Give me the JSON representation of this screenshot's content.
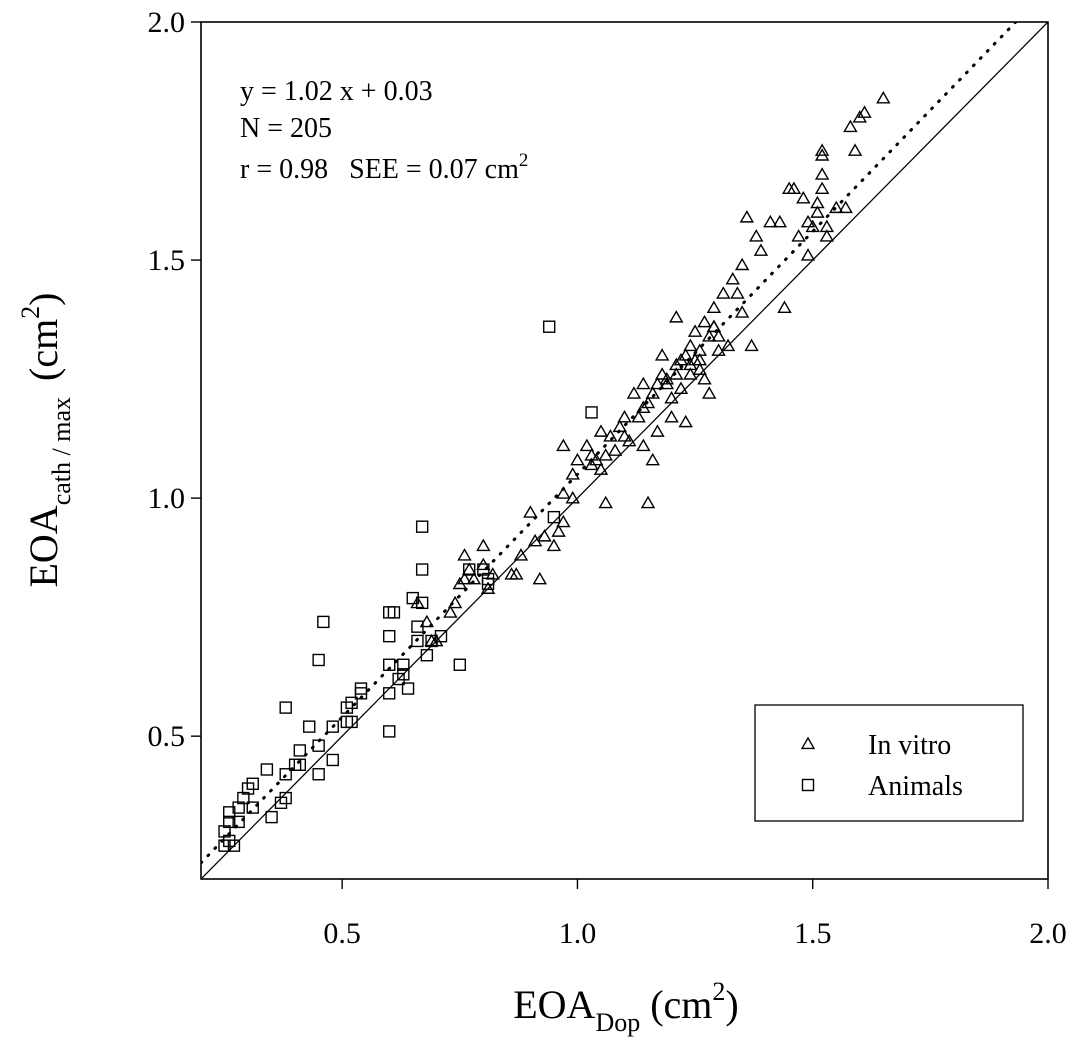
{
  "chart_data": {
    "type": "scatter",
    "xlabel": {
      "main": "EOA",
      "sub": "Dop",
      "unit_pre": "(cm",
      "unit_sup": "2",
      "unit_post": ")"
    },
    "ylabel": {
      "main": "EOA",
      "sub": "cath / max",
      "unit_pre": "(cm",
      "unit_sup": "2",
      "unit_post": ")"
    },
    "xlim": [
      0.2,
      2.0
    ],
    "ylim": [
      0.2,
      2.0
    ],
    "x_ticks": [
      "0.5",
      "1.0",
      "1.5",
      "2.0"
    ],
    "y_ticks": [
      "0.5",
      "1.0",
      "1.5",
      "2.0"
    ],
    "annotation": {
      "equation": "y = 1.02 x + 0.03",
      "n": "N = 205",
      "r_see": "r = 0.98   SEE = 0.07 cm",
      "r_see_sup": "2"
    },
    "regression": {
      "slope": 1.02,
      "intercept": 0.03,
      "style": "dotted"
    },
    "identity_line": {
      "slope": 1,
      "intercept": 0,
      "style": "solid"
    },
    "legend": {
      "position": "bottom-right"
    },
    "series": [
      {
        "name": "In vitro",
        "marker": "triangle",
        "points": [
          [
            0.69,
            0.7
          ],
          [
            0.7,
            0.7
          ],
          [
            0.68,
            0.74
          ],
          [
            0.66,
            0.78
          ],
          [
            0.73,
            0.76
          ],
          [
            0.74,
            0.78
          ],
          [
            0.75,
            0.82
          ],
          [
            0.76,
            0.83
          ],
          [
            0.77,
            0.85
          ],
          [
            0.76,
            0.88
          ],
          [
            0.78,
            0.83
          ],
          [
            0.8,
            0.86
          ],
          [
            0.8,
            0.9
          ],
          [
            0.81,
            0.81
          ],
          [
            0.82,
            0.84
          ],
          [
            0.86,
            0.84
          ],
          [
            0.87,
            0.84
          ],
          [
            0.88,
            0.88
          ],
          [
            0.91,
            0.91
          ],
          [
            0.92,
            0.83
          ],
          [
            0.9,
            0.97
          ],
          [
            0.93,
            0.92
          ],
          [
            0.95,
            0.9
          ],
          [
            0.96,
            0.93
          ],
          [
            0.97,
            0.95
          ],
          [
            0.97,
            1.01
          ],
          [
            0.97,
            1.11
          ],
          [
            0.99,
            1.0
          ],
          [
            0.99,
            1.05
          ],
          [
            1.0,
            1.08
          ],
          [
            1.02,
            1.11
          ],
          [
            1.03,
            1.07
          ],
          [
            1.03,
            1.09
          ],
          [
            1.04,
            1.08
          ],
          [
            1.05,
            1.06
          ],
          [
            1.06,
            0.99
          ],
          [
            1.06,
            1.09
          ],
          [
            1.07,
            1.13
          ],
          [
            1.08,
            1.1
          ],
          [
            1.09,
            1.15
          ],
          [
            1.1,
            1.17
          ],
          [
            1.11,
            1.12
          ],
          [
            1.12,
            1.22
          ],
          [
            1.13,
            1.17
          ],
          [
            1.14,
            1.19
          ],
          [
            1.14,
            1.11
          ],
          [
            1.15,
            1.2
          ],
          [
            1.15,
            0.99
          ],
          [
            1.16,
            1.08
          ],
          [
            1.16,
            1.22
          ],
          [
            1.17,
            1.24
          ],
          [
            1.17,
            1.14
          ],
          [
            1.18,
            1.26
          ],
          [
            1.18,
            1.3
          ],
          [
            1.19,
            1.24
          ],
          [
            1.19,
            1.25
          ],
          [
            1.2,
            1.21
          ],
          [
            1.2,
            1.17
          ],
          [
            1.21,
            1.28
          ],
          [
            1.21,
            1.38
          ],
          [
            1.22,
            1.29
          ],
          [
            1.22,
            1.23
          ],
          [
            1.23,
            1.3
          ],
          [
            1.24,
            1.26
          ],
          [
            1.24,
            1.32
          ],
          [
            1.25,
            1.29
          ],
          [
            1.25,
            1.35
          ],
          [
            1.26,
            1.31
          ],
          [
            1.26,
            1.29
          ],
          [
            1.27,
            1.37
          ],
          [
            1.27,
            1.25
          ],
          [
            1.28,
            1.34
          ],
          [
            1.28,
            1.22
          ],
          [
            1.29,
            1.36
          ],
          [
            1.29,
            1.4
          ],
          [
            1.3,
            1.34
          ],
          [
            1.31,
            1.43
          ],
          [
            1.32,
            1.32
          ],
          [
            1.33,
            1.46
          ],
          [
            1.34,
            1.43
          ],
          [
            1.35,
            1.39
          ],
          [
            1.35,
            1.49
          ],
          [
            1.36,
            1.59
          ],
          [
            1.37,
            1.32
          ],
          [
            1.38,
            1.55
          ],
          [
            1.39,
            1.52
          ],
          [
            1.41,
            1.58
          ],
          [
            1.43,
            1.58
          ],
          [
            1.44,
            1.4
          ],
          [
            1.45,
            1.65
          ],
          [
            1.46,
            1.65
          ],
          [
            1.47,
            1.55
          ],
          [
            1.48,
            1.63
          ],
          [
            1.49,
            1.51
          ],
          [
            1.49,
            1.58
          ],
          [
            1.5,
            1.57
          ],
          [
            1.51,
            1.6
          ],
          [
            1.51,
            1.62
          ],
          [
            1.52,
            1.65
          ],
          [
            1.52,
            1.72
          ],
          [
            1.53,
            1.55
          ],
          [
            1.53,
            1.57
          ],
          [
            1.52,
            1.73
          ],
          [
            1.52,
            1.68
          ],
          [
            1.55,
            1.61
          ],
          [
            1.57,
            1.61
          ],
          [
            1.58,
            1.78
          ],
          [
            1.59,
            1.73
          ],
          [
            1.6,
            1.8
          ],
          [
            1.61,
            1.81
          ],
          [
            1.65,
            1.84
          ],
          [
            1.23,
            1.16
          ],
          [
            1.24,
            1.28
          ],
          [
            1.1,
            1.13
          ],
          [
            1.05,
            1.14
          ],
          [
            1.14,
            1.24
          ],
          [
            1.21,
            1.26
          ],
          [
            1.29,
            1.36
          ],
          [
            1.3,
            1.31
          ],
          [
            1.26,
            1.27
          ]
        ]
      },
      {
        "name": "Animals",
        "marker": "square",
        "points": [
          [
            0.25,
            0.27
          ],
          [
            0.26,
            0.28
          ],
          [
            0.27,
            0.27
          ],
          [
            0.25,
            0.3
          ],
          [
            0.26,
            0.32
          ],
          [
            0.26,
            0.34
          ],
          [
            0.28,
            0.32
          ],
          [
            0.28,
            0.35
          ],
          [
            0.29,
            0.37
          ],
          [
            0.3,
            0.39
          ],
          [
            0.31,
            0.4
          ],
          [
            0.31,
            0.35
          ],
          [
            0.34,
            0.43
          ],
          [
            0.35,
            0.33
          ],
          [
            0.37,
            0.36
          ],
          [
            0.38,
            0.37
          ],
          [
            0.38,
            0.42
          ],
          [
            0.38,
            0.56
          ],
          [
            0.4,
            0.44
          ],
          [
            0.41,
            0.44
          ],
          [
            0.41,
            0.47
          ],
          [
            0.43,
            0.52
          ],
          [
            0.45,
            0.42
          ],
          [
            0.45,
            0.48
          ],
          [
            0.45,
            0.66
          ],
          [
            0.46,
            0.74
          ],
          [
            0.48,
            0.45
          ],
          [
            0.48,
            0.52
          ],
          [
            0.51,
            0.53
          ],
          [
            0.52,
            0.53
          ],
          [
            0.51,
            0.56
          ],
          [
            0.52,
            0.57
          ],
          [
            0.54,
            0.59
          ],
          [
            0.54,
            0.6
          ],
          [
            0.6,
            0.51
          ],
          [
            0.6,
            0.59
          ],
          [
            0.6,
            0.65
          ],
          [
            0.6,
            0.71
          ],
          [
            0.6,
            0.76
          ],
          [
            0.61,
            0.76
          ],
          [
            0.62,
            0.62
          ],
          [
            0.63,
            0.63
          ],
          [
            0.63,
            0.65
          ],
          [
            0.64,
            0.6
          ],
          [
            0.65,
            0.79
          ],
          [
            0.66,
            0.7
          ],
          [
            0.66,
            0.73
          ],
          [
            0.67,
            0.78
          ],
          [
            0.67,
            0.85
          ],
          [
            0.67,
            0.94
          ],
          [
            0.68,
            0.67
          ],
          [
            0.69,
            0.7
          ],
          [
            0.71,
            0.71
          ],
          [
            0.75,
            0.65
          ],
          [
            0.77,
            0.85
          ],
          [
            0.8,
            0.85
          ],
          [
            0.81,
            0.82
          ],
          [
            0.81,
            0.83
          ],
          [
            0.94,
            1.36
          ],
          [
            0.95,
            0.96
          ],
          [
            1.03,
            1.18
          ]
        ]
      }
    ]
  }
}
